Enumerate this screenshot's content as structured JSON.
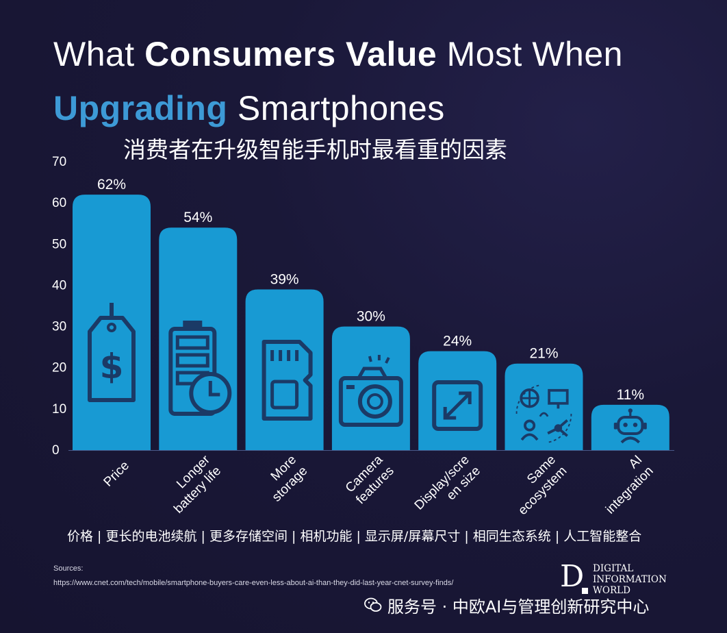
{
  "title": {
    "line1_pre": "What ",
    "line1_bold": "Consumers Value",
    "line1_post": " Most When",
    "line2_accent": "Upgrading",
    "line2_post": " Smartphones",
    "subtitle_cn": "消费者在升级智能手机时最看重的因素"
  },
  "chart_data": {
    "type": "bar",
    "categories": [
      "Price",
      "Longer battery life",
      "More storage",
      "Camera features",
      "Display/screen size",
      "Same ecosystem",
      "AI integration"
    ],
    "category_lines": [
      [
        "Price"
      ],
      [
        "Longer",
        "battery life"
      ],
      [
        "More",
        "storage"
      ],
      [
        "Camera",
        "features"
      ],
      [
        "Display/scre",
        "en size"
      ],
      [
        "Same",
        "ecosystem"
      ],
      [
        "AI",
        "integration"
      ]
    ],
    "values": [
      62,
      54,
      39,
      30,
      24,
      21,
      11
    ],
    "data_labels": [
      "62%",
      "54%",
      "39%",
      "30%",
      "24%",
      "21%",
      "11%"
    ],
    "icons": [
      "price-tag-icon",
      "battery-clock-icon",
      "sd-card-icon",
      "camera-icon",
      "expand-screen-icon",
      "ecosystem-icon",
      "robot-icon"
    ],
    "yticks": [
      "0",
      "10",
      "20",
      "30",
      "40",
      "50",
      "60",
      "70"
    ],
    "ylim": [
      0,
      70
    ],
    "grid": false,
    "bar_color": "#189ad3",
    "icon_color": "#1b3a66"
  },
  "categories_cn": "价格 | 更长的电池续航 | 更多存储空间 | 相机功能 | 显示屏/屏幕尺寸 | 相同生态系统 | 人工智能整合",
  "sources": {
    "label": "Sources:",
    "url": "https://www.cnet.com/tech/mobile/smartphone-buyers-care-even-less-about-ai-than-they-did-last-year-cnet-survey-finds/"
  },
  "logo": {
    "letter": "D",
    "line1": "DIGITAL",
    "line2": "INFORMATION",
    "line3": "WORLD"
  },
  "watermark": "服务号 · 中欧AI与管理创新研究中心"
}
